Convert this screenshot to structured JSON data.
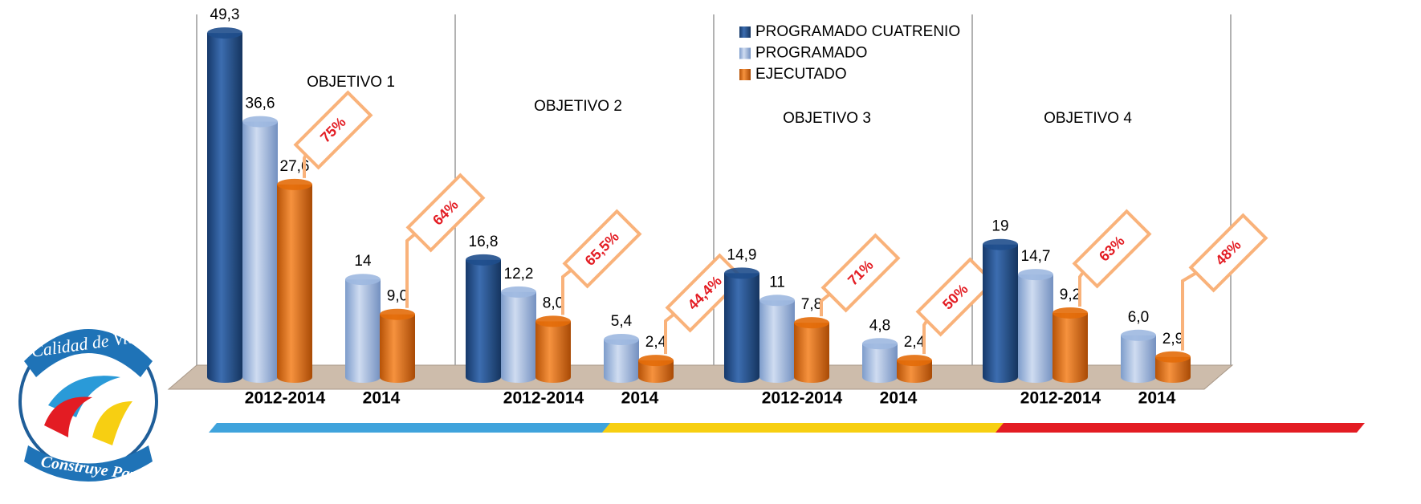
{
  "chart_data": {
    "type": "bar",
    "groups": [
      "OBJETIVO  1",
      "OBJETIVO  2",
      "OBJETIVO  3",
      "OBJETIVO  4"
    ],
    "categories": [
      "2012-2014",
      "2014",
      "2012-2014",
      "2014",
      "2012-2014",
      "2014",
      "2012-2014",
      "2014"
    ],
    "series": [
      {
        "name": "PROGRAMADO CUATRENIO",
        "color": "#1f4e8c",
        "values": [
          49.3,
          null,
          16.8,
          null,
          14.9,
          null,
          19,
          null
        ],
        "value_labels": [
          "49,3",
          null,
          "16,8",
          null,
          "14,9",
          null,
          "19",
          null
        ]
      },
      {
        "name": "PROGRAMADO",
        "color": "#9db8e0",
        "values": [
          36.6,
          14,
          12.2,
          5.4,
          11,
          4.8,
          14.7,
          6.0
        ],
        "value_labels": [
          "36,6",
          "14",
          "12,2",
          "5,4",
          "11",
          "4,8",
          "14,7",
          "6,0"
        ]
      },
      {
        "name": "EJECUTADO",
        "color": "#e36c09",
        "values": [
          27.6,
          9.0,
          8.0,
          2.4,
          7.8,
          2.4,
          9.2,
          2.9
        ],
        "value_labels": [
          "27,6",
          "9,0",
          "8,0",
          "2,4",
          "7,8",
          "2,4",
          "9,2",
          "2,9"
        ]
      }
    ],
    "percentages": {
      "values": [
        75,
        64,
        65.5,
        44.4,
        71,
        50,
        63,
        48
      ],
      "value_labels": [
        "75%",
        "64%",
        "65,5%",
        "44,4%",
        "71%",
        "50%",
        "63%",
        "48%"
      ]
    },
    "ylim": [
      0,
      50
    ],
    "legend": "top-right"
  },
  "logo": {
    "top": "Calidad de Vida",
    "bottom": "Construye Paz"
  }
}
